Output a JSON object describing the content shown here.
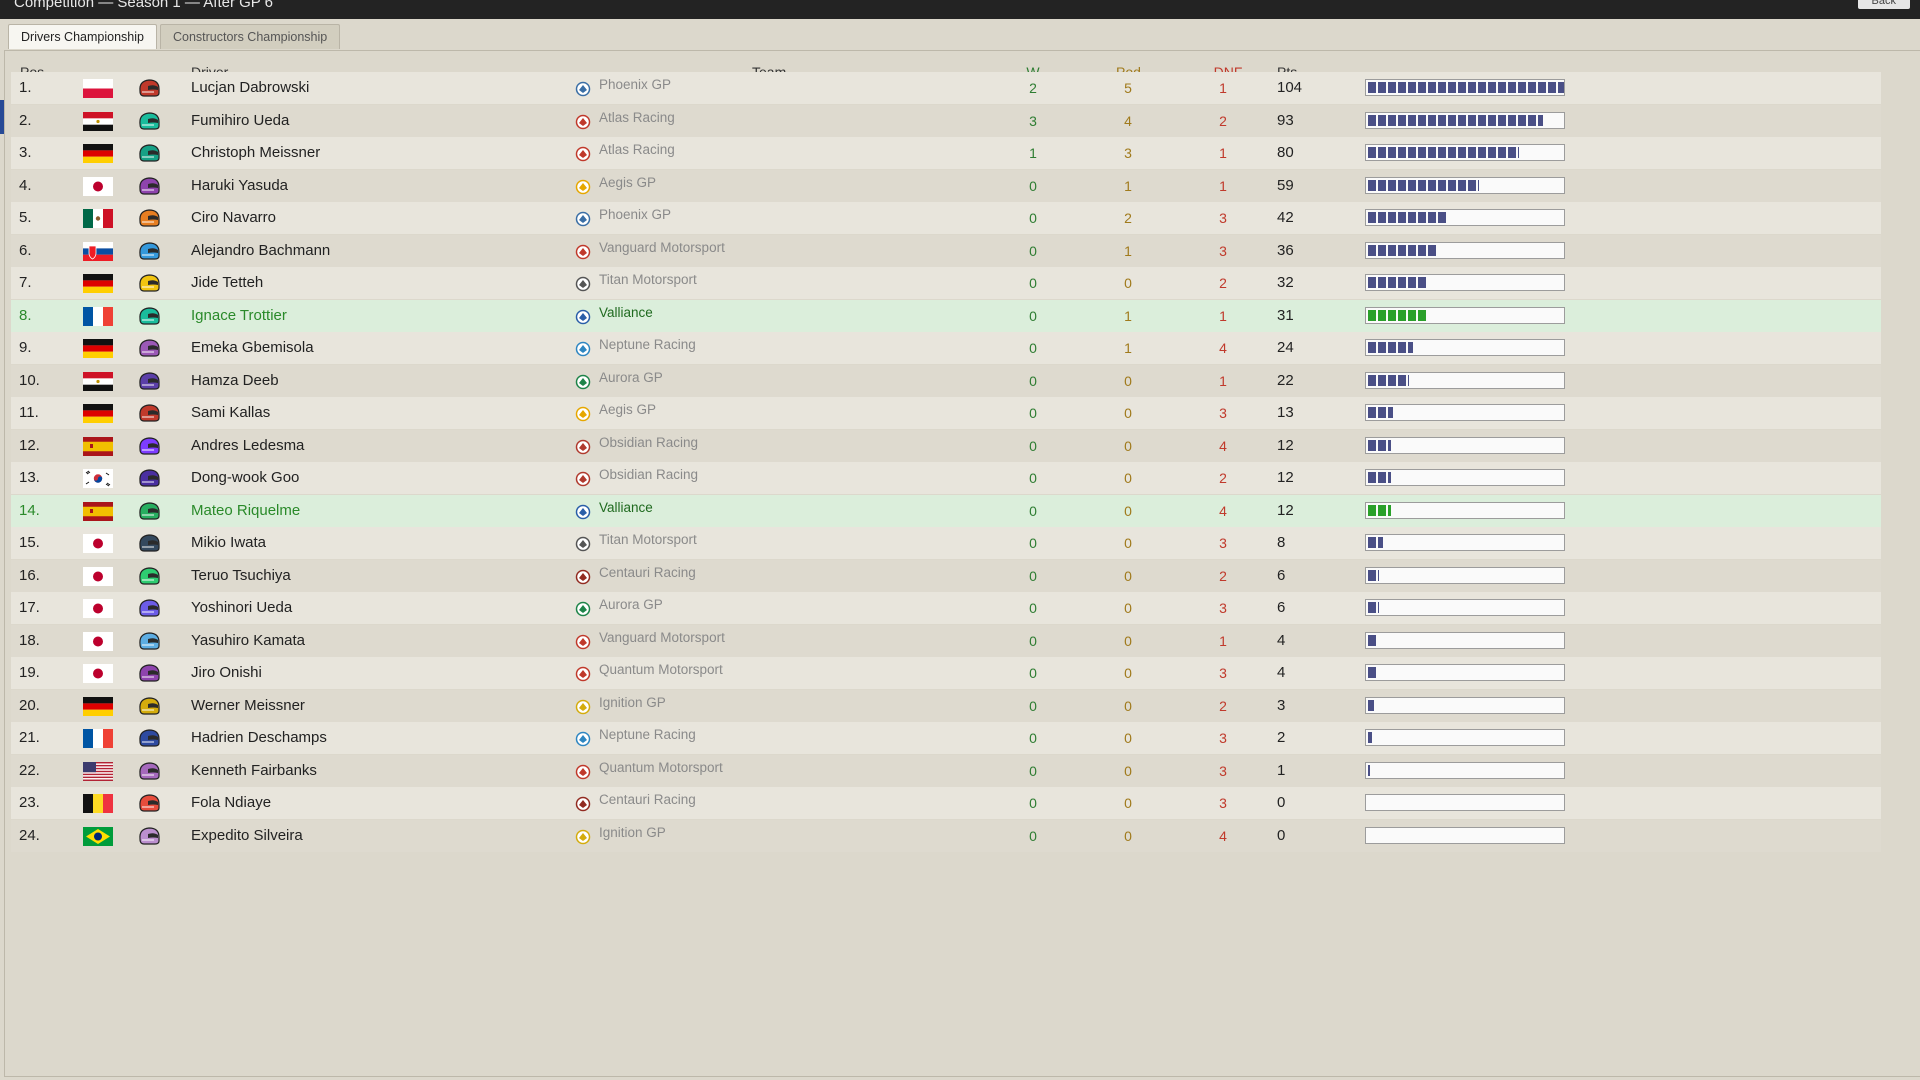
{
  "window": {
    "title": "Competition — Season 1 — After GP 6",
    "back_label": "Back"
  },
  "tabs": [
    {
      "label": "Drivers Championship",
      "active": true
    },
    {
      "label": "Constructors Championship",
      "active": false
    }
  ],
  "columns": {
    "pos": "Pos",
    "driver": "Driver",
    "team": "Team",
    "wins": "W",
    "podiums": "Pod",
    "dnf": "DNF",
    "points": "Pts"
  },
  "colors": {
    "wins": "#2e7d32",
    "podiums": "#a07a1c",
    "dnf": "#c0392b",
    "bar": "#4a4f86",
    "highlight_bar": "#2aa02a",
    "highlight_row": "#dbeedb"
  },
  "max_points": 104,
  "rows": [
    {
      "pos": "1.",
      "flag": "poland-flag",
      "driver": "Lucjan Dabrowski",
      "team": "Phoenix GP",
      "w": "2",
      "pod": "5",
      "dnf": "1",
      "pts": "104",
      "highlight": false
    },
    {
      "pos": "2.",
      "flag": "egypt-flag",
      "driver": "Fumihiro Ueda",
      "team": "Atlas Racing",
      "w": "3",
      "pod": "4",
      "dnf": "2",
      "pts": "93",
      "highlight": false
    },
    {
      "pos": "3.",
      "flag": "germany-flag",
      "driver": "Christoph Meissner",
      "team": "Atlas Racing",
      "w": "1",
      "pod": "3",
      "dnf": "1",
      "pts": "80",
      "highlight": false
    },
    {
      "pos": "4.",
      "flag": "japan-flag",
      "driver": "Haruki Yasuda",
      "team": "Aegis GP",
      "w": "0",
      "pod": "1",
      "dnf": "1",
      "pts": "59",
      "highlight": false
    },
    {
      "pos": "5.",
      "flag": "mexico-flag",
      "driver": "Ciro Navarro",
      "team": "Phoenix GP",
      "w": "0",
      "pod": "2",
      "dnf": "3",
      "pts": "42",
      "highlight": false
    },
    {
      "pos": "6.",
      "flag": "slovakia-flag",
      "driver": "Alejandro Bachmann",
      "team": "Vanguard Motorsport",
      "w": "0",
      "pod": "1",
      "dnf": "3",
      "pts": "36",
      "highlight": false
    },
    {
      "pos": "7.",
      "flag": "germany-flag",
      "driver": "Jide Tetteh",
      "team": "Titan Motorsport",
      "w": "0",
      "pod": "0",
      "dnf": "2",
      "pts": "32",
      "highlight": false
    },
    {
      "pos": "8.",
      "flag": "france-flag",
      "driver": "Ignace Trottier",
      "team": "Valliance",
      "w": "0",
      "pod": "1",
      "dnf": "1",
      "pts": "31",
      "highlight": true
    },
    {
      "pos": "9.",
      "flag": "germany-flag",
      "driver": "Emeka Gbemisola",
      "team": "Neptune Racing",
      "w": "0",
      "pod": "1",
      "dnf": "4",
      "pts": "24",
      "highlight": false
    },
    {
      "pos": "10.",
      "flag": "egypt-flag",
      "driver": "Hamza Deeb",
      "team": "Aurora GP",
      "w": "0",
      "pod": "0",
      "dnf": "1",
      "pts": "22",
      "highlight": false
    },
    {
      "pos": "11.",
      "flag": "germany-flag",
      "driver": "Sami Kallas",
      "team": "Aegis GP",
      "w": "0",
      "pod": "0",
      "dnf": "3",
      "pts": "13",
      "highlight": false
    },
    {
      "pos": "12.",
      "flag": "spain-flag",
      "driver": "Andres Ledesma",
      "team": "Obsidian Racing",
      "w": "0",
      "pod": "0",
      "dnf": "4",
      "pts": "12",
      "highlight": false
    },
    {
      "pos": "13.",
      "flag": "korea-flag",
      "driver": "Dong-wook Goo",
      "team": "Obsidian Racing",
      "w": "0",
      "pod": "0",
      "dnf": "2",
      "pts": "12",
      "highlight": false
    },
    {
      "pos": "14.",
      "flag": "spain-flag",
      "driver": "Mateo Riquelme",
      "team": "Valliance",
      "w": "0",
      "pod": "0",
      "dnf": "4",
      "pts": "12",
      "highlight": true
    },
    {
      "pos": "15.",
      "flag": "japan-flag",
      "driver": "Mikio Iwata",
      "team": "Titan Motorsport",
      "w": "0",
      "pod": "0",
      "dnf": "3",
      "pts": "8",
      "highlight": false
    },
    {
      "pos": "16.",
      "flag": "japan-flag",
      "driver": "Teruo Tsuchiya",
      "team": "Centauri Racing",
      "w": "0",
      "pod": "0",
      "dnf": "2",
      "pts": "6",
      "highlight": false
    },
    {
      "pos": "17.",
      "flag": "japan-flag",
      "driver": "Yoshinori Ueda",
      "team": "Aurora GP",
      "w": "0",
      "pod": "0",
      "dnf": "3",
      "pts": "6",
      "highlight": false
    },
    {
      "pos": "18.",
      "flag": "japan-flag",
      "driver": "Yasuhiro Kamata",
      "team": "Vanguard Motorsport",
      "w": "0",
      "pod": "0",
      "dnf": "1",
      "pts": "4",
      "highlight": false
    },
    {
      "pos": "19.",
      "flag": "japan-flag",
      "driver": "Jiro Onishi",
      "team": "Quantum Motorsport",
      "w": "0",
      "pod": "0",
      "dnf": "3",
      "pts": "4",
      "highlight": false
    },
    {
      "pos": "20.",
      "flag": "germany-flag",
      "driver": "Werner Meissner",
      "team": "Ignition GP",
      "w": "0",
      "pod": "0",
      "dnf": "2",
      "pts": "3",
      "highlight": false
    },
    {
      "pos": "21.",
      "flag": "france-flag",
      "driver": "Hadrien Deschamps",
      "team": "Neptune Racing",
      "w": "0",
      "pod": "0",
      "dnf": "3",
      "pts": "2",
      "highlight": false
    },
    {
      "pos": "22.",
      "flag": "usa-flag",
      "driver": "Kenneth Fairbanks",
      "team": "Quantum Motorsport",
      "w": "0",
      "pod": "0",
      "dnf": "3",
      "pts": "1",
      "highlight": false
    },
    {
      "pos": "23.",
      "flag": "belgium-flag",
      "driver": "Fola Ndiaye",
      "team": "Centauri Racing",
      "w": "0",
      "pod": "0",
      "dnf": "3",
      "pts": "0",
      "highlight": false
    },
    {
      "pos": "24.",
      "flag": "brazil-flag",
      "driver": "Expedito Silveira",
      "team": "Ignition GP",
      "w": "0",
      "pod": "0",
      "dnf": "4",
      "pts": "0",
      "highlight": false
    }
  ]
}
